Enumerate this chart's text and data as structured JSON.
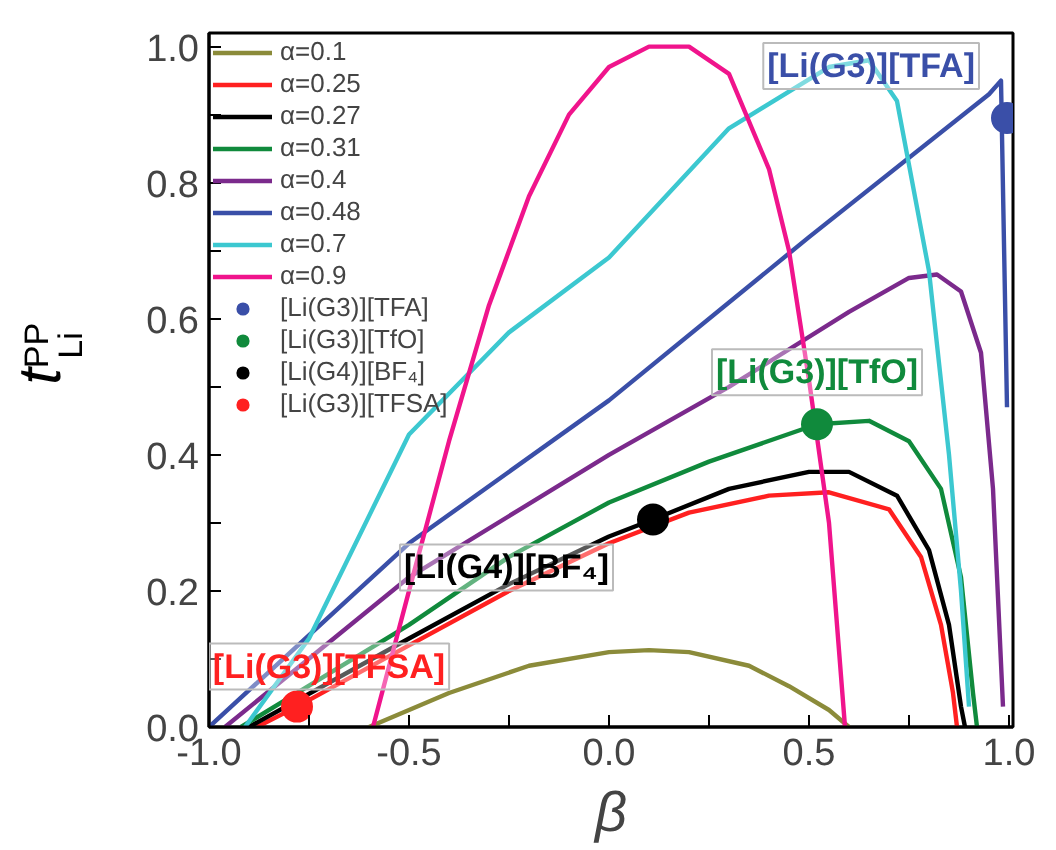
{
  "chart_data": {
    "type": "line",
    "xlabel": "β",
    "ylabel": "t$^{PP}$$_{Li}$",
    "xlim": [
      -1.0,
      1.01
    ],
    "ylim": [
      0,
      1.02
    ],
    "xticks": [
      {
        "value": -1.0,
        "label": "-1.0"
      },
      {
        "value": -0.75,
        "label": null
      },
      -0.5,
      {
        "value": -0.25,
        "label": null
      },
      {
        "value": 0.0,
        "label": "0.0"
      },
      {
        "value": 0.25,
        "label": null
      },
      0.5,
      {
        "value": 0.75,
        "label": null
      },
      {
        "value": 1.0,
        "label": "1.0"
      }
    ],
    "yticks": [
      {
        "value": 0.0,
        "label": "0.0"
      },
      {
        "value": 0.1,
        "label": null
      },
      0.2,
      {
        "value": 0.3,
        "label": null
      },
      0.4,
      {
        "value": 0.5,
        "label": null
      },
      0.6,
      {
        "value": 0.7,
        "label": null
      },
      0.8,
      {
        "value": 0.9,
        "label": null
      },
      {
        "value": 1.0,
        "label": "1.0"
      }
    ],
    "grid": false,
    "legend": "top left",
    "line_style": "solid",
    "series": [
      {
        "name": "α=0.1",
        "color": "#8b8b3a",
        "x": [
          -0.6,
          -0.4,
          -0.2,
          0.0,
          0.1,
          0.2,
          0.35,
          0.45,
          0.55,
          0.6
        ],
        "values": [
          0,
          0.05,
          0.09,
          0.11,
          0.113,
          0.11,
          0.09,
          0.06,
          0.025,
          0
        ]
      },
      {
        "name": "α=0.25",
        "color": "#ff2020",
        "x": [
          -0.88,
          -0.78,
          -0.5,
          -0.25,
          0.0,
          0.2,
          0.4,
          0.55,
          0.7,
          0.78,
          0.83,
          0.86,
          0.87
        ],
        "values": [
          0,
          0.03,
          0.12,
          0.2,
          0.27,
          0.315,
          0.34,
          0.345,
          0.32,
          0.25,
          0.15,
          0.05,
          0
        ]
      },
      {
        "name": "α=0.27",
        "color": "#000000",
        "x": [
          -0.9,
          -0.5,
          -0.25,
          0.0,
          0.11,
          0.3,
          0.5,
          0.6,
          0.72,
          0.8,
          0.85,
          0.88,
          0.89
        ],
        "values": [
          0,
          0.13,
          0.21,
          0.28,
          0.305,
          0.35,
          0.375,
          0.375,
          0.34,
          0.26,
          0.15,
          0.03,
          0
        ]
      },
      {
        "name": "α=0.31",
        "color": "#108a3c",
        "x": [
          -0.92,
          -0.5,
          -0.25,
          0.0,
          0.25,
          0.52,
          0.65,
          0.75,
          0.83,
          0.88,
          0.91,
          0.92
        ],
        "values": [
          0,
          0.15,
          0.25,
          0.33,
          0.39,
          0.445,
          0.45,
          0.42,
          0.35,
          0.22,
          0.05,
          0
        ]
      },
      {
        "name": "α=0.4",
        "color": "#7b2a8c",
        "x": [
          -0.96,
          -0.5,
          0.0,
          0.3,
          0.6,
          0.75,
          0.82,
          0.88,
          0.93,
          0.96,
          0.985
        ],
        "values": [
          0,
          0.22,
          0.4,
          0.5,
          0.61,
          0.66,
          0.665,
          0.64,
          0.55,
          0.35,
          0.03
        ]
      },
      {
        "name": "α=0.48",
        "color": "#3a4fa8",
        "x": [
          -1.0,
          -0.5,
          0.0,
          0.5,
          0.95,
          0.98,
          0.995
        ],
        "values": [
          0,
          0.27,
          0.48,
          0.72,
          0.93,
          0.95,
          0.47
        ]
      },
      {
        "name": "α=0.7",
        "color": "#3cc8d0",
        "x": [
          -0.91,
          -0.75,
          -0.5,
          -0.25,
          0.0,
          0.3,
          0.55,
          0.65,
          0.72,
          0.8,
          0.85,
          0.88,
          0.9
        ],
        "values": [
          0,
          0.13,
          0.43,
          0.58,
          0.69,
          0.88,
          0.97,
          0.98,
          0.92,
          0.67,
          0.4,
          0.2,
          0.03
        ]
      },
      {
        "name": "α=0.9",
        "color": "#f0148c",
        "x": [
          -0.59,
          -0.5,
          -0.4,
          -0.3,
          -0.2,
          -0.1,
          0.0,
          0.1,
          0.2,
          0.3,
          0.4,
          0.45,
          0.5,
          0.55,
          0.59
        ],
        "values": [
          0,
          0.2,
          0.42,
          0.62,
          0.78,
          0.9,
          0.97,
          1.0,
          1.0,
          0.96,
          0.82,
          0.7,
          0.51,
          0.3,
          0
        ]
      },
      {
        "name": "[Li(G3)][TFA]",
        "type": "scatter",
        "marker": "circle",
        "color": "#3a4fa8",
        "x": [
          0.995
        ],
        "values": [
          0.895
        ]
      },
      {
        "name": "[Li(G3)][TfO]",
        "type": "scatter",
        "marker": "circle",
        "color": "#108a3c",
        "x": [
          0.52
        ],
        "values": [
          0.445
        ]
      },
      {
        "name": "[Li(G4)][BF₄]",
        "type": "scatter",
        "marker": "circle",
        "color": "#000000",
        "x": [
          0.11
        ],
        "values": [
          0.305
        ]
      },
      {
        "name": "[Li(G3)][TFSA]",
        "type": "scatter",
        "marker": "circle",
        "color": "#ff2020",
        "x": [
          -0.78
        ],
        "values": [
          0.03
        ]
      }
    ],
    "annotations": [
      "[Li(G3)][TFA]",
      "[Li(G3)][TfO]",
      "[Li(G4)][BF₄]",
      "[Li(G3)][TFSA]"
    ]
  }
}
